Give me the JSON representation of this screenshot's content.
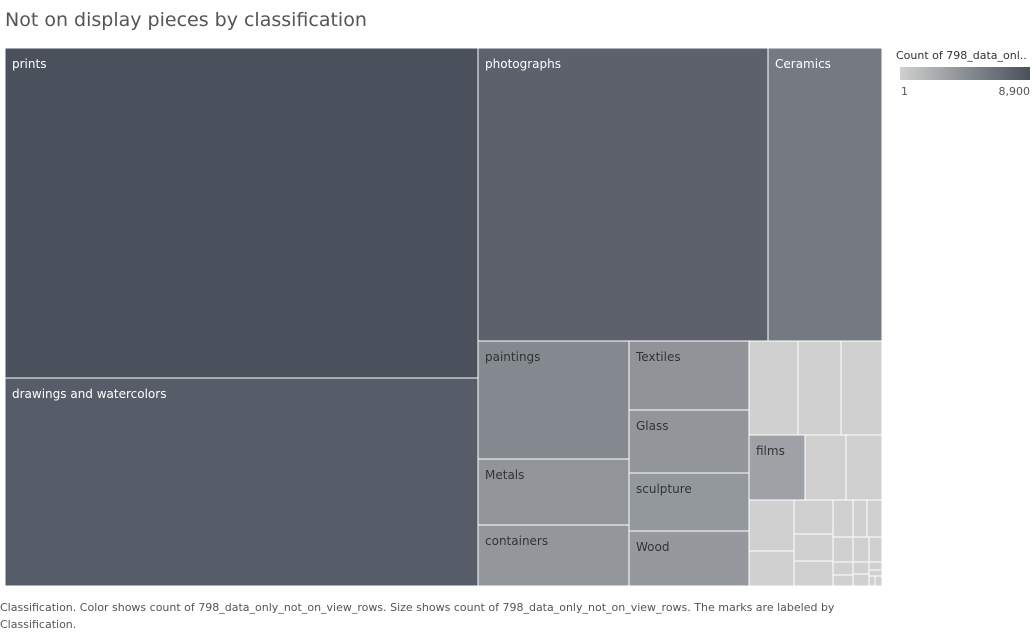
{
  "title": "Not on display pieces by classification",
  "legend": {
    "title": "Count of 798_data_onl..",
    "min_label": "1",
    "max_label": "8,900",
    "min": 1,
    "max": 8900,
    "colors": [
      "#d0d0d0",
      "#8a8f94",
      "#4a505c"
    ]
  },
  "caption": "Classification.  Color shows count of 798_data_only_not_on_view_rows.  Size shows count of 798_data_only_not_on_view_rows.  The marks are labeled by Classification.",
  "chart_data": {
    "type": "treemap",
    "size_field": "count of 798_data_only_not_on_view_rows",
    "color_field": "count of 798_data_only_not_on_view_rows",
    "items": [
      {
        "label": "prints",
        "value": 8900
      },
      {
        "label": "drawings and watercolors",
        "value": 5700
      },
      {
        "label": "photographs",
        "value": 4900
      },
      {
        "label": "Ceramics",
        "value": 1900
      },
      {
        "label": "paintings",
        "value": 1000
      },
      {
        "label": "Textiles",
        "value": 590
      },
      {
        "label": "Metals",
        "value": 560
      },
      {
        "label": "Glass",
        "value": 540
      },
      {
        "label": "containers",
        "value": 520
      },
      {
        "label": "sculpture",
        "value": 500
      },
      {
        "label": "Wood",
        "value": 470
      },
      {
        "label": "films",
        "value": 290
      }
    ]
  }
}
